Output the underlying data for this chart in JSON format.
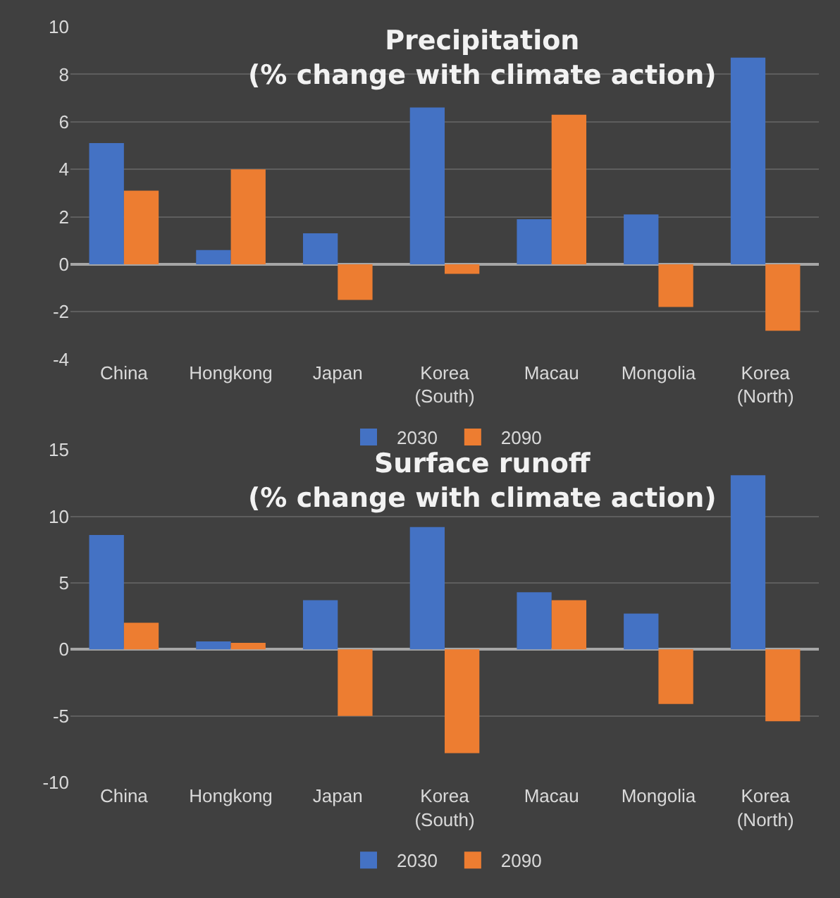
{
  "chart_data": [
    {
      "type": "bar",
      "title": "Precipitation\n(% change with climate action)",
      "categories": [
        "China",
        "Hongkong",
        "Japan",
        "Korea\n(South)",
        "Macau",
        "Mongolia",
        "Korea\n(North)"
      ],
      "series": [
        {
          "name": "2030",
          "color": "#4472c4",
          "values": [
            5.1,
            0.6,
            1.3,
            6.6,
            1.9,
            2.1,
            8.7
          ]
        },
        {
          "name": "2090",
          "color": "#ed7d31",
          "values": [
            3.1,
            4.0,
            -1.5,
            -0.4,
            6.3,
            -1.8,
            -2.8
          ]
        }
      ],
      "ylim": [
        -4,
        10
      ],
      "yticks": [
        -4,
        -2,
        0,
        2,
        4,
        6,
        8,
        10
      ],
      "grid": "y",
      "legend": "bottom"
    },
    {
      "type": "bar",
      "title": "Surface runoff\n(% change with climate action)",
      "categories": [
        "China",
        "Hongkong",
        "Japan",
        "Korea\n(South)",
        "Macau",
        "Mongolia",
        "Korea\n(North)"
      ],
      "series": [
        {
          "name": "2030",
          "color": "#4472c4",
          "values": [
            8.6,
            0.6,
            3.7,
            9.2,
            4.3,
            2.7,
            13.1
          ]
        },
        {
          "name": "2090",
          "color": "#ed7d31",
          "values": [
            2.0,
            0.5,
            -5.0,
            -7.8,
            3.7,
            -4.1,
            -5.4
          ]
        }
      ],
      "ylim": [
        -10,
        15
      ],
      "yticks": [
        -10,
        -5,
        0,
        5,
        10,
        15
      ],
      "grid": "y",
      "legend": "bottom"
    }
  ]
}
